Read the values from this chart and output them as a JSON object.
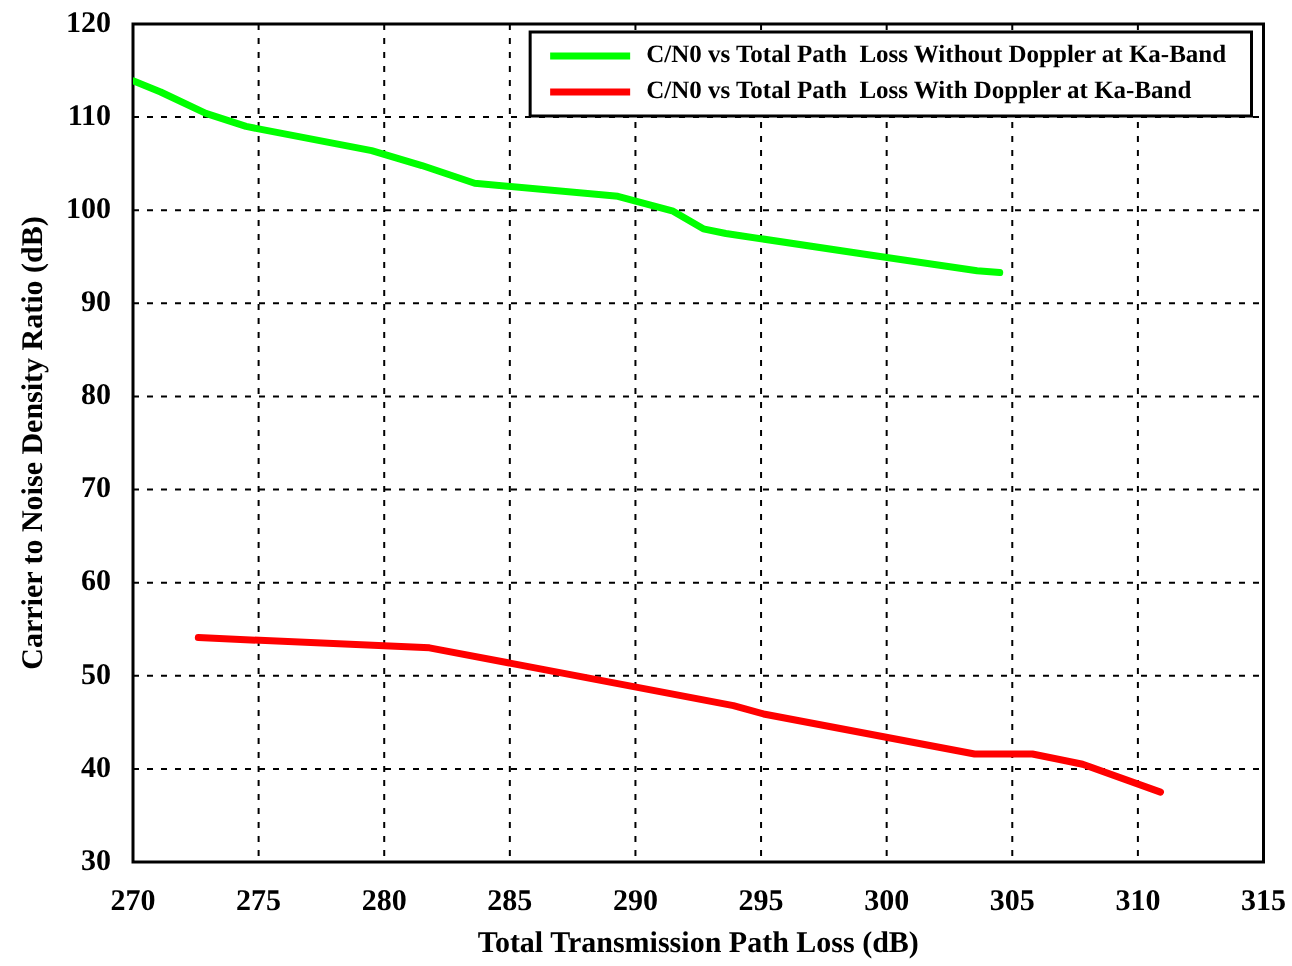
{
  "chart_data": {
    "type": "line",
    "xlabel": "Total Transmission Path Loss (dB)",
    "ylabel": "Carrier to Noise Density Ratio (dB)",
    "xlim": [
      270,
      315
    ],
    "xticks": [
      270,
      275,
      280,
      285,
      290,
      295,
      300,
      305,
      310,
      315
    ],
    "ylim": [
      30,
      120
    ],
    "yticks": [
      30,
      40,
      50,
      60,
      70,
      80,
      90,
      100,
      110,
      120
    ],
    "grid": true,
    "legend": "top right",
    "marker": "none",
    "line_style": "solid",
    "series": [
      {
        "name": "C/N0 vs Total Path  Loss Without Doppler at Ka-Band",
        "color": "#00ff00",
        "x": [
          270.0,
          271.1,
          272.9,
          274.5,
          279.5,
          281.5,
          283.6,
          289.3,
          291.5,
          292.7,
          293.6,
          298.8,
          303.6,
          304.5
        ],
        "values": [
          113.9,
          112.7,
          110.4,
          109.0,
          106.4,
          104.8,
          102.9,
          101.5,
          99.9,
          98.0,
          97.5,
          95.4,
          93.5,
          93.3
        ]
      },
      {
        "name": "C/N0 vs Total Path  Loss With Doppler at Ka-Band",
        "color": "#ff0000",
        "x": [
          272.6,
          281.8,
          293.9,
          295.1,
          303.5,
          305.8,
          307.8,
          310.9
        ],
        "values": [
          54.1,
          53.0,
          46.8,
          45.9,
          41.6,
          41.6,
          40.5,
          37.5
        ]
      }
    ]
  }
}
